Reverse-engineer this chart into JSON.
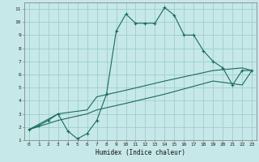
{
  "title": "",
  "xlabel": "Humidex (Indice chaleur)",
  "ylabel": "",
  "xlim": [
    -0.5,
    23.5
  ],
  "ylim": [
    1,
    11.5
  ],
  "xticks": [
    0,
    1,
    2,
    3,
    4,
    5,
    6,
    7,
    8,
    9,
    10,
    11,
    12,
    13,
    14,
    15,
    16,
    17,
    18,
    19,
    20,
    21,
    22,
    23
  ],
  "yticks": [
    1,
    2,
    3,
    4,
    5,
    6,
    7,
    8,
    9,
    10,
    11
  ],
  "bg_color": "#c6e8e8",
  "line_color": "#1a6b5a",
  "grid_color": "#9ecece",
  "line1_x": [
    0,
    1,
    2,
    3,
    4,
    5,
    6,
    7,
    8,
    9,
    10,
    11,
    12,
    13,
    14,
    15,
    16,
    17,
    18,
    19,
    20,
    21,
    22,
    23
  ],
  "line1_y": [
    1.8,
    2.1,
    2.5,
    3.0,
    1.7,
    1.1,
    1.5,
    2.5,
    4.5,
    9.3,
    10.6,
    9.9,
    9.9,
    9.9,
    11.1,
    10.5,
    9.0,
    9.0,
    7.8,
    7.0,
    6.5,
    5.2,
    6.3,
    6.3
  ],
  "line2_x": [
    0,
    3,
    6,
    7,
    10,
    14,
    19,
    22,
    23
  ],
  "line2_y": [
    1.8,
    3.0,
    3.3,
    4.3,
    4.8,
    5.5,
    6.3,
    6.5,
    6.3
  ],
  "line3_x": [
    0,
    3,
    6,
    7,
    10,
    14,
    19,
    22,
    23
  ],
  "line3_y": [
    1.8,
    2.5,
    3.0,
    3.3,
    3.8,
    4.5,
    5.5,
    5.2,
    6.3
  ]
}
